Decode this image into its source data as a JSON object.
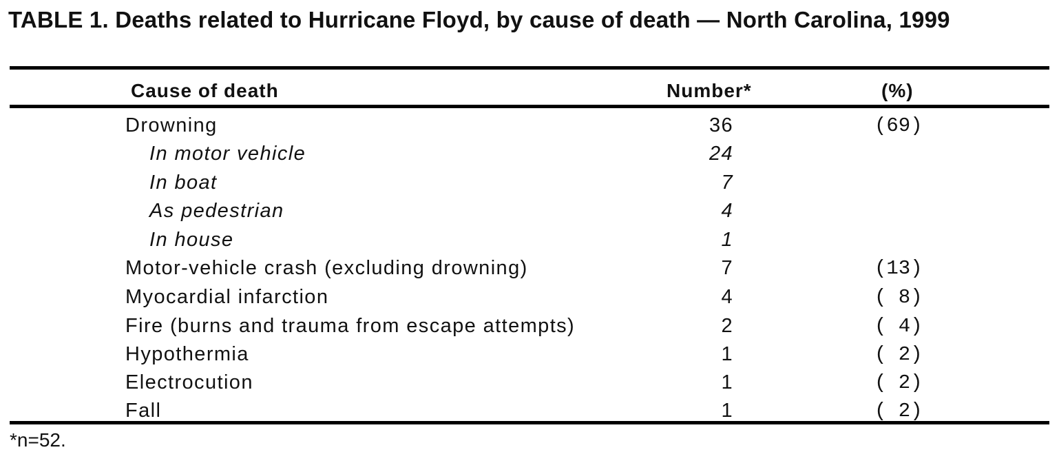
{
  "table": {
    "title": "TABLE 1. Deaths related to Hurricane Floyd, by cause of death — North Carolina, 1999",
    "headers": {
      "cause": "Cause of death",
      "number": "Number*",
      "percent": "(%)"
    },
    "rows": [
      {
        "cause": "Drowning",
        "number": "36",
        "percent": "(69)",
        "sub": false
      },
      {
        "cause": "In motor vehicle",
        "number": "24",
        "percent": "",
        "sub": true
      },
      {
        "cause": "In boat",
        "number": "7",
        "percent": "",
        "sub": true
      },
      {
        "cause": "As pedestrian",
        "number": "4",
        "percent": "",
        "sub": true
      },
      {
        "cause": "In house",
        "number": "1",
        "percent": "",
        "sub": true
      },
      {
        "cause": "Motor-vehicle crash (excluding drowning)",
        "number": "7",
        "percent": "(13)",
        "sub": false
      },
      {
        "cause": "Myocardial infarction",
        "number": "4",
        "percent": "( 8)",
        "sub": false
      },
      {
        "cause": "Fire (burns and trauma from escape attempts)",
        "number": "2",
        "percent": "( 4)",
        "sub": false
      },
      {
        "cause": "Hypothermia",
        "number": "1",
        "percent": "( 2)",
        "sub": false
      },
      {
        "cause": "Electrocution",
        "number": "1",
        "percent": "( 2)",
        "sub": false
      },
      {
        "cause": "Fall",
        "number": "1",
        "percent": "( 2)",
        "sub": false
      }
    ],
    "footnote": "*n=52."
  }
}
